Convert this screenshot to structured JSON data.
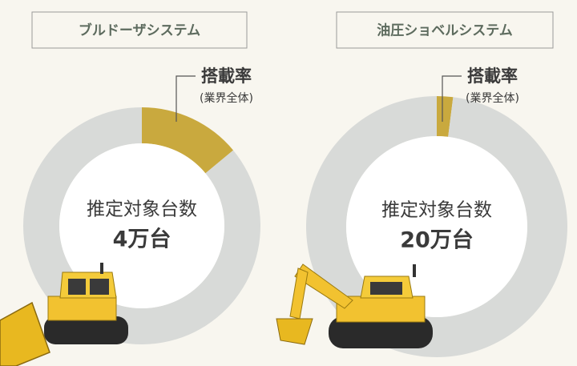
{
  "chart_data": [
    {
      "type": "pie",
      "title": "ブルドーザシステム",
      "categories": [
        "搭載率",
        null
      ],
      "values": [
        14,
        86
      ],
      "colors": [
        "#c9a93e",
        "#d8dad8"
      ],
      "annotation": "(業界全体)",
      "center_label": "推定対象台数",
      "center_value": "4万台"
    },
    {
      "type": "pie",
      "title": "油圧ショベルシステム",
      "categories": [
        "搭載率",
        null
      ],
      "values": [
        2,
        98
      ],
      "colors": [
        "#c9a93e",
        "#d8dad8"
      ],
      "annotation": "(業界全体)",
      "center_label": "推定対象台数",
      "center_value": "20万台"
    }
  ]
}
